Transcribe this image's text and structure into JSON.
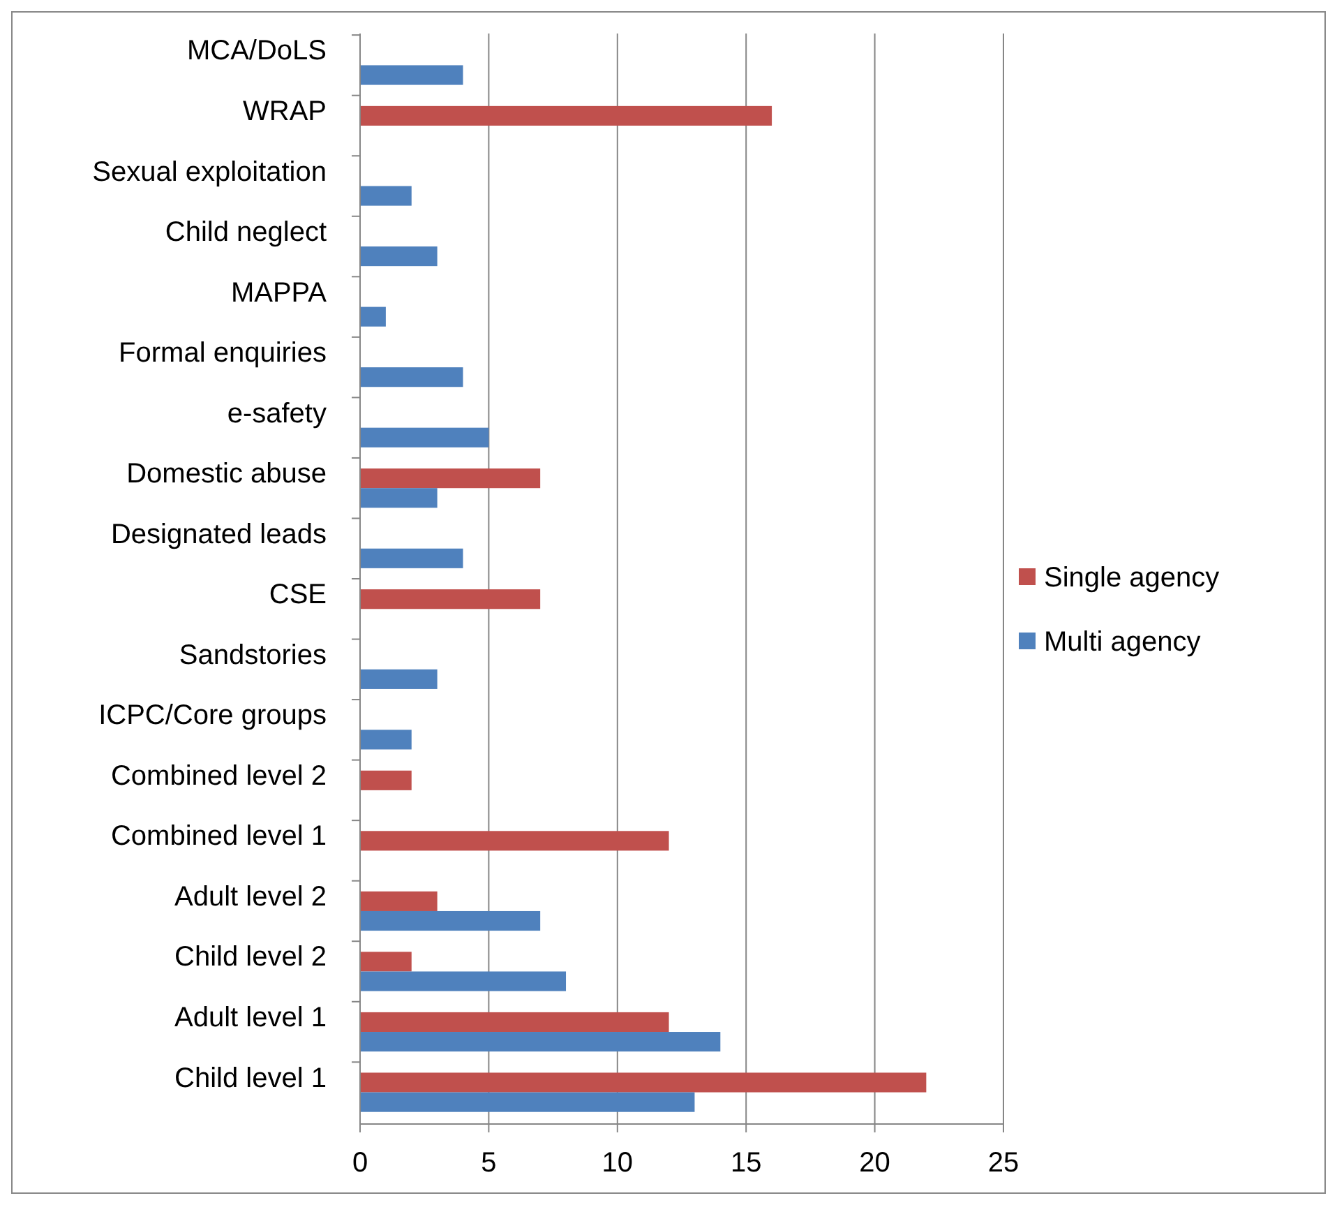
{
  "chart_data": {
    "type": "bar",
    "orientation": "horizontal",
    "categories": [
      "MCA/DoLS",
      "WRAP",
      "Sexual exploitation",
      "Child neglect",
      "MAPPA",
      "Formal enquiries",
      "e-safety",
      "Domestic abuse",
      "Designated leads",
      "CSE",
      "Sandstories",
      "ICPC/Core groups",
      "Combined level 2",
      "Combined level 1",
      "Adult level 2",
      "Child level 2",
      "Adult level 1",
      "Child level 1"
    ],
    "series": [
      {
        "name": "Single agency",
        "color": "#c0504d",
        "values": [
          null,
          16,
          null,
          null,
          null,
          null,
          null,
          7,
          null,
          7,
          null,
          null,
          2,
          12,
          3,
          2,
          12,
          22
        ]
      },
      {
        "name": "Multi agency",
        "color": "#4f81bd",
        "values": [
          4,
          null,
          2,
          3,
          1,
          4,
          5,
          3,
          4,
          null,
          3,
          2,
          null,
          null,
          7,
          8,
          14,
          13
        ]
      }
    ],
    "xlim": [
      0,
      25
    ],
    "xticks": [
      0,
      5,
      10,
      15,
      20,
      25
    ],
    "grid": "x",
    "legend": "right"
  }
}
